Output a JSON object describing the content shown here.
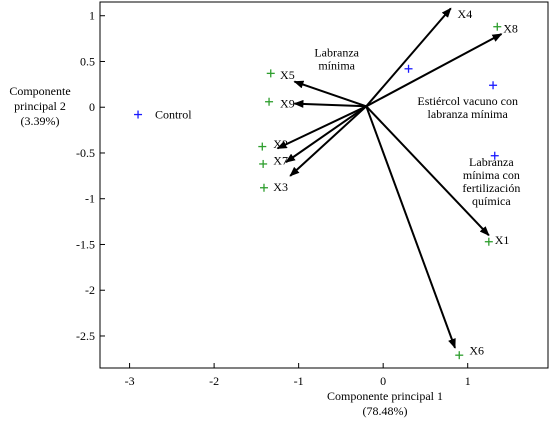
{
  "chart_data": {
    "type": "scatter",
    "title": "",
    "xlabel": "Componente principal 1",
    "xlabel_sub": "(78.48%)",
    "ylabel_lines": [
      "Componente",
      "principal 2",
      "(3.39%)"
    ],
    "xlim": [
      -3.35,
      1.95
    ],
    "ylim": [
      -2.85,
      1.15
    ],
    "xticks": [
      -3,
      -2,
      -1,
      0,
      1
    ],
    "yticks": [
      1,
      0.5,
      0,
      -0.5,
      -1,
      -1.5,
      -2,
      -2.5
    ],
    "ytick_labels": [
      "1",
      "0.5",
      "0",
      "-0.5",
      "-1",
      "-1.5",
      "-2",
      "-2.5"
    ],
    "grid": false,
    "vector_origin": [
      -0.2,
      0.01
    ],
    "variables": [
      {
        "name": "X4",
        "x": 0.8,
        "y": 1.08,
        "label_x": 0.88,
        "label_y": 1.02
      },
      {
        "name": "X8",
        "x": 1.4,
        "y": 0.8,
        "label_x": 1.42,
        "label_y": 0.86
      },
      {
        "name": "X5",
        "x": -1.05,
        "y": 0.28,
        "label_x": -1.22,
        "label_y": 0.35
      },
      {
        "name": "X9",
        "x": -1.05,
        "y": 0.04,
        "label_x": -1.22,
        "label_y": 0.04
      },
      {
        "name": "X2",
        "x": -1.25,
        "y": -0.45,
        "label_x": -1.3,
        "label_y": -0.4
      },
      {
        "name": "X7",
        "x": -1.15,
        "y": -0.6,
        "label_x": -1.3,
        "label_y": -0.58
      },
      {
        "name": "X3",
        "x": -1.1,
        "y": -0.75,
        "label_x": -1.3,
        "label_y": -0.87
      },
      {
        "name": "X1",
        "x": 1.25,
        "y": -1.4,
        "label_x": 1.32,
        "label_y": -1.45
      },
      {
        "name": "X6",
        "x": 0.85,
        "y": -2.63,
        "label_x": 1.02,
        "label_y": -2.66
      }
    ],
    "variable_points": [
      {
        "x": 1.35,
        "y": 0.88
      },
      {
        "x": -1.33,
        "y": 0.37
      },
      {
        "x": -1.35,
        "y": 0.06
      },
      {
        "x": -1.43,
        "y": -0.43
      },
      {
        "x": -1.42,
        "y": -0.62
      },
      {
        "x": -1.41,
        "y": -0.88
      },
      {
        "x": 1.25,
        "y": -1.47
      },
      {
        "x": 0.9,
        "y": -2.71
      }
    ],
    "treatments": [
      {
        "name": "Control",
        "x": -2.9,
        "y": -0.08,
        "label_x": -2.7,
        "label_y": -0.08
      },
      {
        "name": "Labranza",
        "name2": "mínima",
        "x": 0.3,
        "y": 0.42,
        "label_x": -0.55,
        "label_y": 0.6
      },
      {
        "name": "Estiércol vacuno con",
        "name2": "labranza mínima",
        "x": 1.3,
        "y": 0.24,
        "label_x": 1.0,
        "label_y": 0.07
      },
      {
        "name": "Labranza",
        "name2": "mínima con",
        "name3": "fertilización",
        "name4": "química",
        "x": 1.32,
        "y": -0.53,
        "label_x": 1.28,
        "label_y": -0.6
      }
    ],
    "colors": {
      "treatment": "#1a1aff",
      "variable_point": "#2e9e2e",
      "arrow": "#000000",
      "axis": "#000000"
    }
  }
}
